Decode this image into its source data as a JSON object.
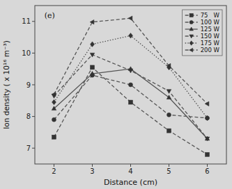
{
  "chart_data": {
    "type": "line",
    "xlabel": "Distance (cm)",
    "ylabel": "Ion density ( x 10¹⁶ m⁻³)",
    "annotation": "(e)",
    "x": [
      2,
      3,
      4,
      5,
      6
    ],
    "series": [
      {
        "name": "75   W",
        "color": "#555555",
        "marker": "square",
        "line_style": "dashed",
        "values": [
          7.35,
          9.55,
          8.45,
          7.55,
          6.8
        ]
      },
      {
        "name": "100 W",
        "color": "#555555",
        "marker": "circle",
        "line_style": "dashed",
        "values": [
          7.9,
          9.3,
          9.0,
          8.05,
          7.95
        ]
      },
      {
        "name": "125 W",
        "color": "#555555",
        "marker": "triangle-up",
        "line_style": "solid",
        "values": [
          8.25,
          9.35,
          9.5,
          8.6,
          7.3
        ]
      },
      {
        "name": "150 W",
        "color": "#555555",
        "marker": "triangle-down",
        "line_style": "dashed",
        "values": [
          8.65,
          9.95,
          9.45,
          8.8,
          7.3
        ]
      },
      {
        "name": "175 W",
        "color": "#555555",
        "marker": "diamond",
        "line_style": "dotted",
        "values": [
          8.45,
          10.28,
          10.55,
          9.55,
          7.95
        ]
      },
      {
        "name": "200 W",
        "color": "#555555",
        "marker": "triangle-left",
        "line_style": "dashed",
        "values": [
          8.7,
          10.98,
          11.1,
          9.6,
          8.4
        ]
      }
    ],
    "xlim": [
      1.5,
      6.5
    ],
    "ylim": [
      6.5,
      11.5
    ],
    "xticks": [
      2,
      3,
      4,
      5,
      6
    ],
    "yticks": [
      7,
      8,
      9,
      10,
      11
    ],
    "grid": false,
    "legend": "upper right"
  }
}
